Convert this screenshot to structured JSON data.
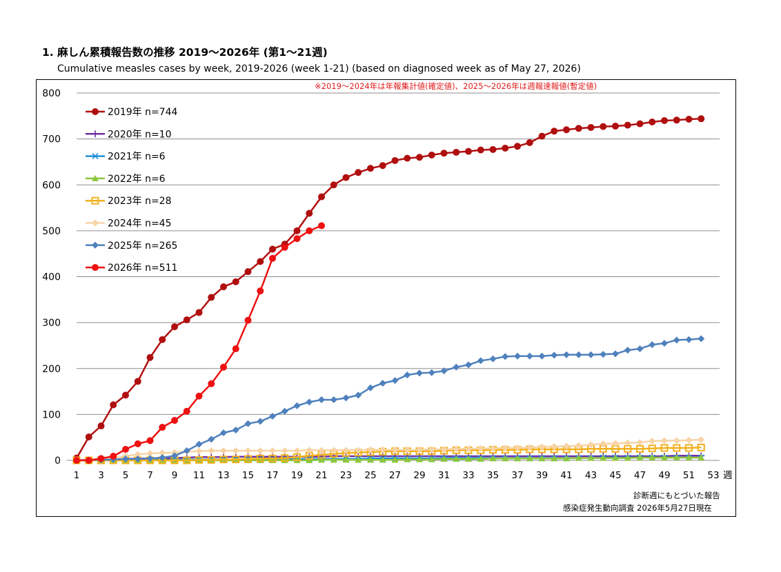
{
  "title": "1. 麻しん累積報告数の推移  2019～2026年 (第1～21週)",
  "subtitle": "Cumulative measles cases by week, 2019-2026 (week 1-21)  (based on diagnosed week as of May 27, 2026)",
  "note": "※2019～2024年は年報集計値(確定値)、2025～2026年は週報速報値(暫定値)",
  "footer": {
    "line1": "診断週にもとづいた報告",
    "line2": "感染症発生動向調査 2026年5月27日現在"
  },
  "chart_data": {
    "type": "line",
    "xlabel": "週",
    "ylim": [
      0,
      800
    ],
    "yticks": [
      0,
      100,
      200,
      300,
      400,
      500,
      600,
      700,
      800
    ],
    "xlim": [
      1,
      53
    ],
    "xticks": [
      1,
      3,
      5,
      7,
      9,
      11,
      13,
      15,
      17,
      19,
      21,
      23,
      25,
      27,
      29,
      31,
      33,
      35,
      37,
      39,
      41,
      43,
      45,
      47,
      49,
      51,
      53
    ],
    "grid": true,
    "legend_position": "top-left",
    "series": [
      {
        "name": "2019年 n=744",
        "color": "#b00f0f",
        "marker": "circle",
        "values": [
          5,
          51,
          75,
          121,
          142,
          172,
          224,
          263,
          291,
          306,
          322,
          355,
          378,
          389,
          411,
          433,
          460,
          471,
          500,
          538,
          574,
          600,
          616,
          627,
          636,
          642,
          653,
          658,
          660,
          665,
          669,
          671,
          673,
          676,
          677,
          680,
          684,
          692,
          706,
          717,
          720,
          723,
          725,
          727,
          728,
          730,
          733,
          737,
          740,
          741,
          743,
          744
        ]
      },
      {
        "name": "2020年 n=10",
        "color": "#7030a0",
        "marker": "plus",
        "values": [
          1,
          1,
          2,
          2,
          3,
          4,
          4,
          4,
          5,
          6,
          7,
          7,
          7,
          8,
          8,
          8,
          8,
          8,
          8,
          8,
          8,
          9,
          9,
          9,
          9,
          9,
          9,
          9,
          9,
          9,
          9,
          9,
          9,
          9,
          9,
          9,
          9,
          9,
          9,
          9,
          9,
          9,
          9,
          9,
          9,
          9,
          9,
          9,
          9,
          10,
          10,
          10
        ]
      },
      {
        "name": "2021年 n=6",
        "color": "#1e90d6",
        "marker": "x",
        "values": [
          1,
          1,
          1,
          1,
          1,
          1,
          1,
          1,
          1,
          2,
          2,
          2,
          2,
          2,
          3,
          3,
          3,
          3,
          3,
          3,
          3,
          3,
          3,
          3,
          4,
          4,
          4,
          4,
          4,
          4,
          5,
          5,
          5,
          5,
          5,
          5,
          5,
          5,
          5,
          5,
          5,
          5,
          5,
          6,
          6,
          6,
          6,
          6,
          6,
          6,
          6,
          6
        ]
      },
      {
        "name": "2022年 n=6",
        "color": "#8ec63f",
        "marker": "triangle",
        "values": [
          0,
          0,
          0,
          0,
          0,
          0,
          0,
          0,
          0,
          0,
          0,
          0,
          0,
          0,
          0,
          0,
          0,
          0,
          0,
          0,
          1,
          1,
          1,
          1,
          1,
          1,
          1,
          2,
          2,
          2,
          3,
          3,
          3,
          3,
          4,
          4,
          4,
          4,
          4,
          4,
          4,
          5,
          5,
          5,
          5,
          5,
          6,
          6,
          6,
          6,
          6,
          6
        ]
      },
      {
        "name": "2023年 n=28",
        "color": "#f2b01d",
        "marker": "square",
        "values": [
          0,
          0,
          0,
          0,
          0,
          0,
          0,
          0,
          0,
          0,
          1,
          1,
          2,
          2,
          3,
          4,
          4,
          5,
          7,
          10,
          12,
          14,
          16,
          17,
          18,
          19,
          20,
          20,
          20,
          20,
          21,
          22,
          22,
          22,
          23,
          23,
          23,
          24,
          24,
          24,
          24,
          24,
          25,
          25,
          25,
          25,
          25,
          26,
          27,
          27,
          27,
          28
        ]
      },
      {
        "name": "2024年 n=45",
        "color": "#f7d4a6",
        "marker": "diamond",
        "values": [
          1,
          2,
          3,
          5,
          9,
          13,
          15,
          16,
          17,
          19,
          20,
          21,
          21,
          21,
          21,
          21,
          21,
          21,
          21,
          22,
          22,
          22,
          22,
          22,
          23,
          23,
          23,
          23,
          23,
          24,
          24,
          25,
          25,
          26,
          26,
          27,
          27,
          28,
          29,
          30,
          31,
          32,
          34,
          36,
          37,
          38,
          39,
          42,
          43,
          43,
          44,
          45
        ]
      },
      {
        "name": "2025年 n=265",
        "color": "#4f81bd",
        "marker": "diamond",
        "values": [
          0,
          1,
          1,
          2,
          3,
          3,
          4,
          6,
          10,
          21,
          35,
          46,
          60,
          66,
          80,
          85,
          96,
          107,
          119,
          127,
          132,
          132,
          136,
          142,
          158,
          168,
          174,
          186,
          190,
          191,
          195,
          203,
          208,
          217,
          221,
          226,
          227,
          227,
          227,
          229,
          230,
          230,
          230,
          231,
          232,
          240,
          243,
          252,
          255,
          262,
          263,
          265
        ]
      },
      {
        "name": "2026年 n=511",
        "color": "#ee1111",
        "marker": "circle",
        "values": [
          0,
          0,
          4,
          9,
          24,
          36,
          43,
          72,
          87,
          107,
          140,
          167,
          203,
          243,
          305,
          369,
          440,
          464,
          483,
          500,
          511
        ]
      }
    ]
  }
}
